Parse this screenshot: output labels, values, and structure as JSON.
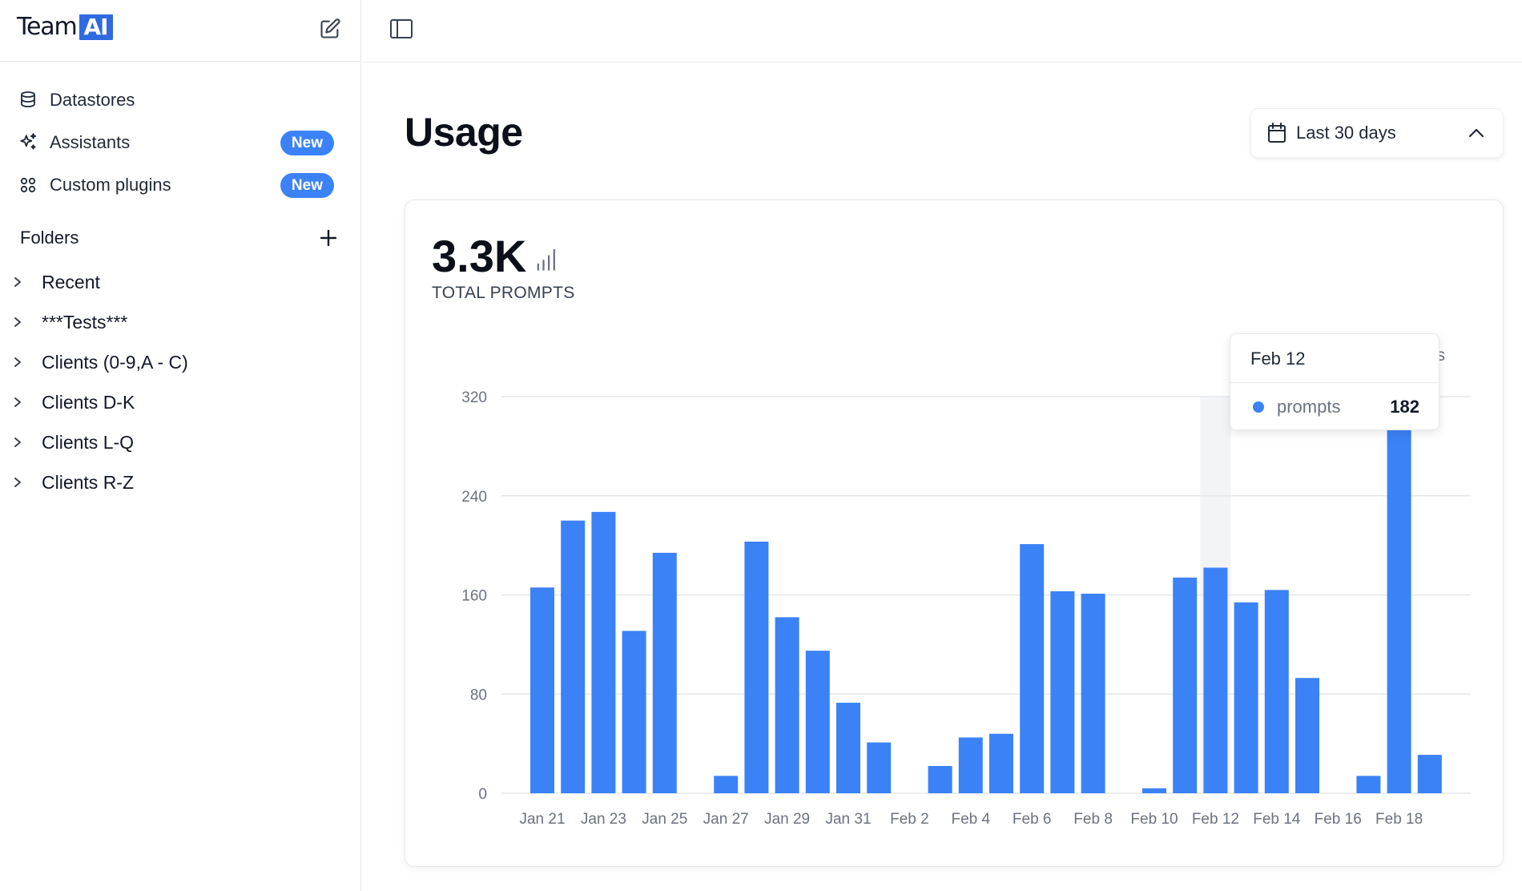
{
  "brand": {
    "name_part1": "Team",
    "name_part2": "AI",
    "accent_color": "#2f6ae0"
  },
  "sidebar": {
    "nav": [
      {
        "label": "Datastores",
        "icon": "database-icon"
      },
      {
        "label": "Assistants",
        "icon": "sparkles-icon",
        "badge": "New"
      },
      {
        "label": "Custom plugins",
        "icon": "grid-plugins-icon",
        "badge": "New"
      }
    ],
    "folders_title": "Folders",
    "folders": [
      "Recent",
      "***Tests***",
      "Clients (0-9,A - C)",
      "Clients D-K",
      "Clients L-Q",
      "Clients R-Z"
    ]
  },
  "main": {
    "title": "Usage",
    "date_range": "Last 30 days",
    "metric": {
      "value": "3.3K",
      "caption": "TOTAL PROMPTS"
    },
    "legend_peek": "pts",
    "tooltip": {
      "date": "Feb 12",
      "series": "prompts",
      "value": "182"
    }
  },
  "chart_data": {
    "type": "bar",
    "ylim": [
      0,
      320
    ],
    "yticks": [
      0,
      80,
      160,
      240,
      320
    ],
    "grid": true,
    "bar_color": "#3b82f6",
    "categories": [
      "Jan 21",
      "Jan 22",
      "Jan 23",
      "Jan 24",
      "Jan 25",
      "Jan 26",
      "Jan 27",
      "Jan 28",
      "Jan 29",
      "Jan 30",
      "Jan 31",
      "Feb 1",
      "Feb 2",
      "Feb 3",
      "Feb 4",
      "Feb 5",
      "Feb 6",
      "Feb 7",
      "Feb 8",
      "Feb 9",
      "Feb 10",
      "Feb 11",
      "Feb 12",
      "Feb 13",
      "Feb 14",
      "Feb 15",
      "Feb 16",
      "Feb 17",
      "Feb 18",
      "Feb 19"
    ],
    "xtick_labels": [
      "Jan 21",
      "Jan 23",
      "Jan 25",
      "Jan 27",
      "Jan 29",
      "Jan 31",
      "Feb 2",
      "Feb 4",
      "Feb 6",
      "Feb 8",
      "Feb 10",
      "Feb 12",
      "Feb 14",
      "Feb 16",
      "Feb 18"
    ],
    "series": [
      {
        "name": "prompts",
        "values": [
          166,
          220,
          227,
          131,
          194,
          0,
          14,
          203,
          142,
          115,
          73,
          41,
          0,
          22,
          45,
          48,
          201,
          163,
          161,
          0,
          4,
          174,
          182,
          154,
          164,
          93,
          0,
          14,
          319,
          31
        ]
      }
    ],
    "highlight_category": "Feb 12"
  }
}
